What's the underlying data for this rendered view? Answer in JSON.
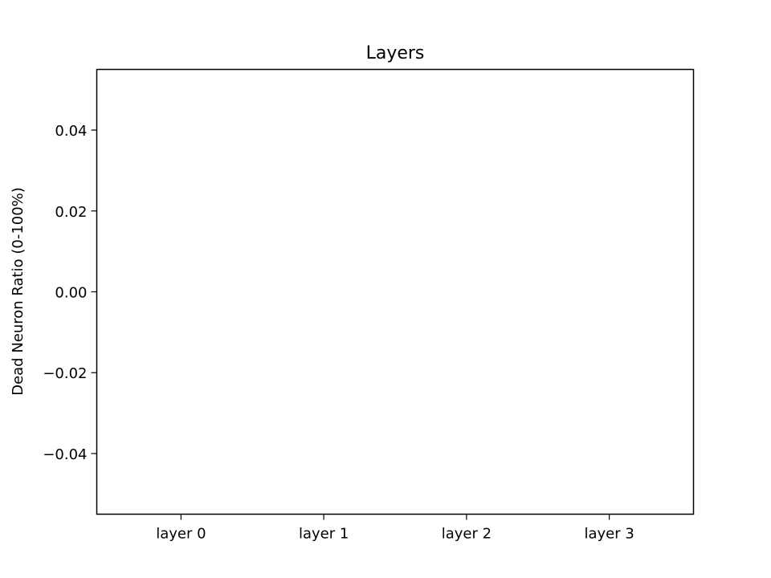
{
  "chart_data": {
    "type": "bar",
    "title": "Layers",
    "xlabel": "",
    "ylabel": "Dead Neuron Ratio (0-100%)",
    "categories": [
      "layer 0",
      "layer 1",
      "layer 2",
      "layer 3"
    ],
    "values": [
      0,
      0,
      0,
      0
    ],
    "ylim": [
      -0.055,
      0.055
    ],
    "yticks": [
      0.04,
      0.02,
      0.0,
      -0.02,
      -0.04
    ],
    "ytick_labels": [
      "0.04",
      "0.02",
      "0.00",
      "−0.02",
      "−0.04"
    ],
    "grid": false,
    "legend": "none"
  }
}
